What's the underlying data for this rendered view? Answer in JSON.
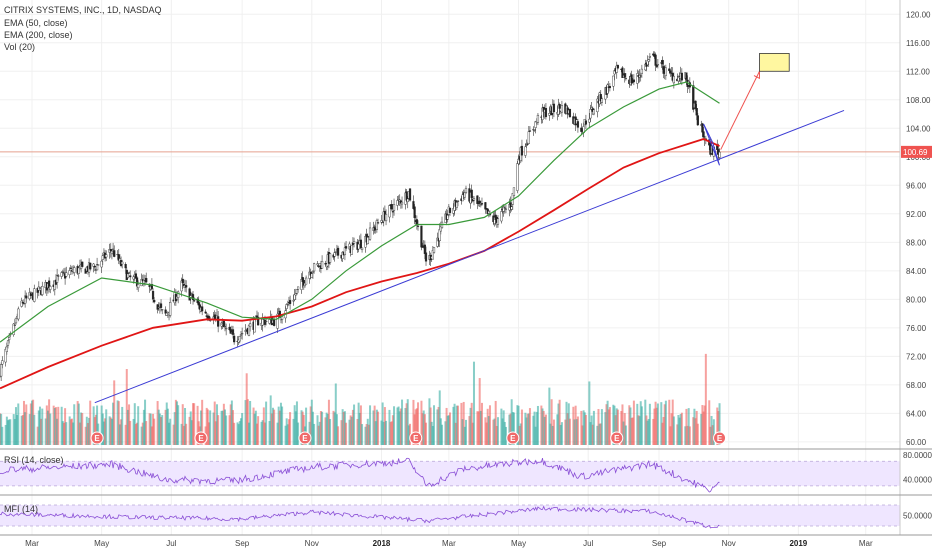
{
  "header": {
    "title": "CITRIX SYSTEMS, INC., 1D, NASDAQ",
    "indicator_1": "EMA (50, close)",
    "indicator_2": "EMA (200, close)",
    "indicator_3": "Vol (20)"
  },
  "rsi_label": "RSI (14, close)",
  "mfi_label": "MFI (14)",
  "colors": {
    "up": "#26a69a",
    "down": "#ef5350",
    "ema50": "#3a9a3a",
    "ema200": "#e01515",
    "trend": "#3b3bd4",
    "price_line": "#e5a08f",
    "target_box": "#fff7a0",
    "osc_band": "#efe6ff",
    "osc_line": "#8a4fd6"
  },
  "chart_data": {
    "type": "candlestick",
    "title": "CITRIX SYSTEMS, INC., 1D, NASDAQ",
    "price_axis": {
      "ylim": [
        59,
        122
      ],
      "ticks": [
        "120.00",
        "116.00",
        "112.00",
        "108.00",
        "104.00",
        "100.00",
        "96.00",
        "92.00",
        "88.00",
        "84.00",
        "80.00",
        "76.00",
        "72.00",
        "68.00",
        "64.00",
        "60.00"
      ],
      "tick_values": [
        120,
        116,
        112,
        108,
        104,
        100,
        96,
        92,
        88,
        84,
        80,
        76,
        72,
        68,
        64,
        60
      ],
      "last_price": "100.69",
      "last_value": 100.69
    },
    "time_axis": {
      "range": [
        "2017-02-01",
        "2019-03-31"
      ],
      "ticks": [
        {
          "label": "Mar",
          "date": "2017-03-01",
          "bold": false
        },
        {
          "label": "May",
          "date": "2017-05-01",
          "bold": false
        },
        {
          "label": "Jul",
          "date": "2017-07-01",
          "bold": false
        },
        {
          "label": "Sep",
          "date": "2017-09-01",
          "bold": false
        },
        {
          "label": "Nov",
          "date": "2017-11-01",
          "bold": false
        },
        {
          "label": "2018",
          "date": "2018-01-01",
          "bold": true
        },
        {
          "label": "Mar",
          "date": "2018-03-01",
          "bold": false
        },
        {
          "label": "May",
          "date": "2018-05-01",
          "bold": false
        },
        {
          "label": "Jul",
          "date": "2018-07-01",
          "bold": false
        },
        {
          "label": "Sep",
          "date": "2018-09-01",
          "bold": false
        },
        {
          "label": "Nov",
          "date": "2018-11-01",
          "bold": false
        },
        {
          "label": "2019",
          "date": "2019-01-01",
          "bold": true
        },
        {
          "label": "Mar",
          "date": "2019-03-01",
          "bold": false
        }
      ]
    },
    "price_keypoints": [
      [
        "2017-02-01",
        70.0
      ],
      [
        "2017-02-20",
        79.5
      ],
      [
        "2017-03-15",
        82.0
      ],
      [
        "2017-04-05",
        84.0
      ],
      [
        "2017-04-25",
        84.5
      ],
      [
        "2017-05-10",
        87.0
      ],
      [
        "2017-05-25",
        83.0
      ],
      [
        "2017-06-10",
        82.0
      ],
      [
        "2017-06-25",
        77.5
      ],
      [
        "2017-07-10",
        82.0
      ],
      [
        "2017-07-25",
        79.0
      ],
      [
        "2017-08-10",
        77.0
      ],
      [
        "2017-08-25",
        74.5
      ],
      [
        "2017-09-15",
        77.0
      ],
      [
        "2017-09-30",
        77.0
      ],
      [
        "2017-10-15",
        80.0
      ],
      [
        "2017-10-30",
        84.0
      ],
      [
        "2017-11-20",
        86.0
      ],
      [
        "2017-12-15",
        88.0
      ],
      [
        "2018-01-05",
        92.0
      ],
      [
        "2018-01-25",
        95.0
      ],
      [
        "2018-02-10",
        85.0
      ],
      [
        "2018-02-28",
        92.0
      ],
      [
        "2018-03-15",
        95.0
      ],
      [
        "2018-04-10",
        91.0
      ],
      [
        "2018-04-25",
        93.5
      ],
      [
        "2018-05-01",
        100.0
      ],
      [
        "2018-05-20",
        106.0
      ],
      [
        "2018-06-10",
        107.0
      ],
      [
        "2018-06-25",
        104.0
      ],
      [
        "2018-07-10",
        108.0
      ],
      [
        "2018-07-20",
        110.0
      ],
      [
        "2018-07-26",
        112.0
      ],
      [
        "2018-08-10",
        110.5
      ],
      [
        "2018-08-25",
        114.0
      ],
      [
        "2018-09-10",
        111.5
      ],
      [
        "2018-09-25",
        111.0
      ],
      [
        "2018-10-05",
        105.0
      ],
      [
        "2018-10-15",
        101.0
      ],
      [
        "2018-10-24",
        100.69
      ]
    ],
    "ema50_points": [
      [
        "2017-02-01",
        74.0
      ],
      [
        "2017-03-15",
        79.0
      ],
      [
        "2017-05-01",
        83.0
      ],
      [
        "2017-06-15",
        82.0
      ],
      [
        "2017-08-01",
        79.5
      ],
      [
        "2017-09-01",
        77.5
      ],
      [
        "2017-10-01",
        77.2
      ],
      [
        "2017-11-01",
        80.0
      ],
      [
        "2017-12-01",
        84.0
      ],
      [
        "2018-01-01",
        87.5
      ],
      [
        "2018-02-01",
        90.5
      ],
      [
        "2018-03-01",
        90.5
      ],
      [
        "2018-04-01",
        91.5
      ],
      [
        "2018-05-01",
        94.5
      ],
      [
        "2018-06-01",
        99.5
      ],
      [
        "2018-07-01",
        104.0
      ],
      [
        "2018-08-01",
        107.0
      ],
      [
        "2018-09-01",
        109.5
      ],
      [
        "2018-09-25",
        110.5
      ],
      [
        "2018-10-24",
        107.5
      ]
    ],
    "ema200_points": [
      [
        "2017-02-01",
        67.5
      ],
      [
        "2017-03-15",
        70.5
      ],
      [
        "2017-05-01",
        73.5
      ],
      [
        "2017-06-15",
        76.0
      ],
      [
        "2017-08-01",
        77.2
      ],
      [
        "2017-09-01",
        77.0
      ],
      [
        "2017-10-01",
        77.6
      ],
      [
        "2017-11-01",
        79.0
      ],
      [
        "2017-12-01",
        81.0
      ],
      [
        "2018-01-01",
        82.5
      ],
      [
        "2018-02-01",
        83.7
      ],
      [
        "2018-03-01",
        85.0
      ],
      [
        "2018-04-01",
        86.8
      ],
      [
        "2018-05-01",
        89.5
      ],
      [
        "2018-06-01",
        92.5
      ],
      [
        "2018-07-01",
        95.5
      ],
      [
        "2018-08-01",
        98.5
      ],
      [
        "2018-09-01",
        100.5
      ],
      [
        "2018-10-10",
        102.5
      ],
      [
        "2018-10-24",
        101.5
      ]
    ],
    "annotations": {
      "trendline": [
        [
          "2017-04-25",
          65.5
        ],
        [
          "2019-02-10",
          106.5
        ]
      ],
      "triangle": [
        [
          "2018-10-10",
          104.6
        ],
        [
          "2018-10-18",
          102.0
        ],
        [
          "2018-10-24",
          98.8
        ]
      ],
      "arrow": [
        [
          "2018-10-25",
          101.0
        ],
        [
          "2018-11-28",
          112.0
        ]
      ],
      "target_box": [
        [
          "2018-11-28",
          114.5
        ],
        [
          "2018-12-24",
          112.0
        ]
      ]
    },
    "earnings_dates": [
      "2017-04-27",
      "2017-07-27",
      "2017-10-26",
      "2018-01-31",
      "2018-04-26",
      "2018-07-26",
      "2018-10-24"
    ],
    "earnings_marker_label": "E",
    "rsi": {
      "tick_labels": [
        "80.0000",
        "40.0000"
      ],
      "tick_values": [
        80,
        40
      ],
      "band": [
        70,
        30
      ],
      "ylim": [
        20,
        85
      ],
      "keypoints": [
        [
          "2017-02-01",
          55
        ],
        [
          "2017-05-10",
          65
        ],
        [
          "2017-06-25",
          40
        ],
        [
          "2017-08-25",
          38
        ],
        [
          "2017-10-30",
          60
        ],
        [
          "2018-01-25",
          70
        ],
        [
          "2018-02-10",
          30
        ],
        [
          "2018-03-15",
          58
        ],
        [
          "2018-05-20",
          72
        ],
        [
          "2018-06-25",
          45
        ],
        [
          "2018-08-25",
          66
        ],
        [
          "2018-10-15",
          23
        ],
        [
          "2018-10-24",
          33
        ]
      ]
    },
    "mfi": {
      "tick_labels": [
        "50.0000"
      ],
      "tick_values": [
        50
      ],
      "band": [
        80,
        20
      ],
      "ylim": [
        0,
        100
      ],
      "keypoints": [
        [
          "2017-02-01",
          55
        ],
        [
          "2017-06-01",
          45
        ],
        [
          "2017-09-01",
          40
        ],
        [
          "2017-11-01",
          60
        ],
        [
          "2018-02-10",
          35
        ],
        [
          "2018-05-20",
          70
        ],
        [
          "2018-08-25",
          62
        ],
        [
          "2018-10-15",
          18
        ],
        [
          "2018-10-24",
          22
        ]
      ]
    }
  }
}
